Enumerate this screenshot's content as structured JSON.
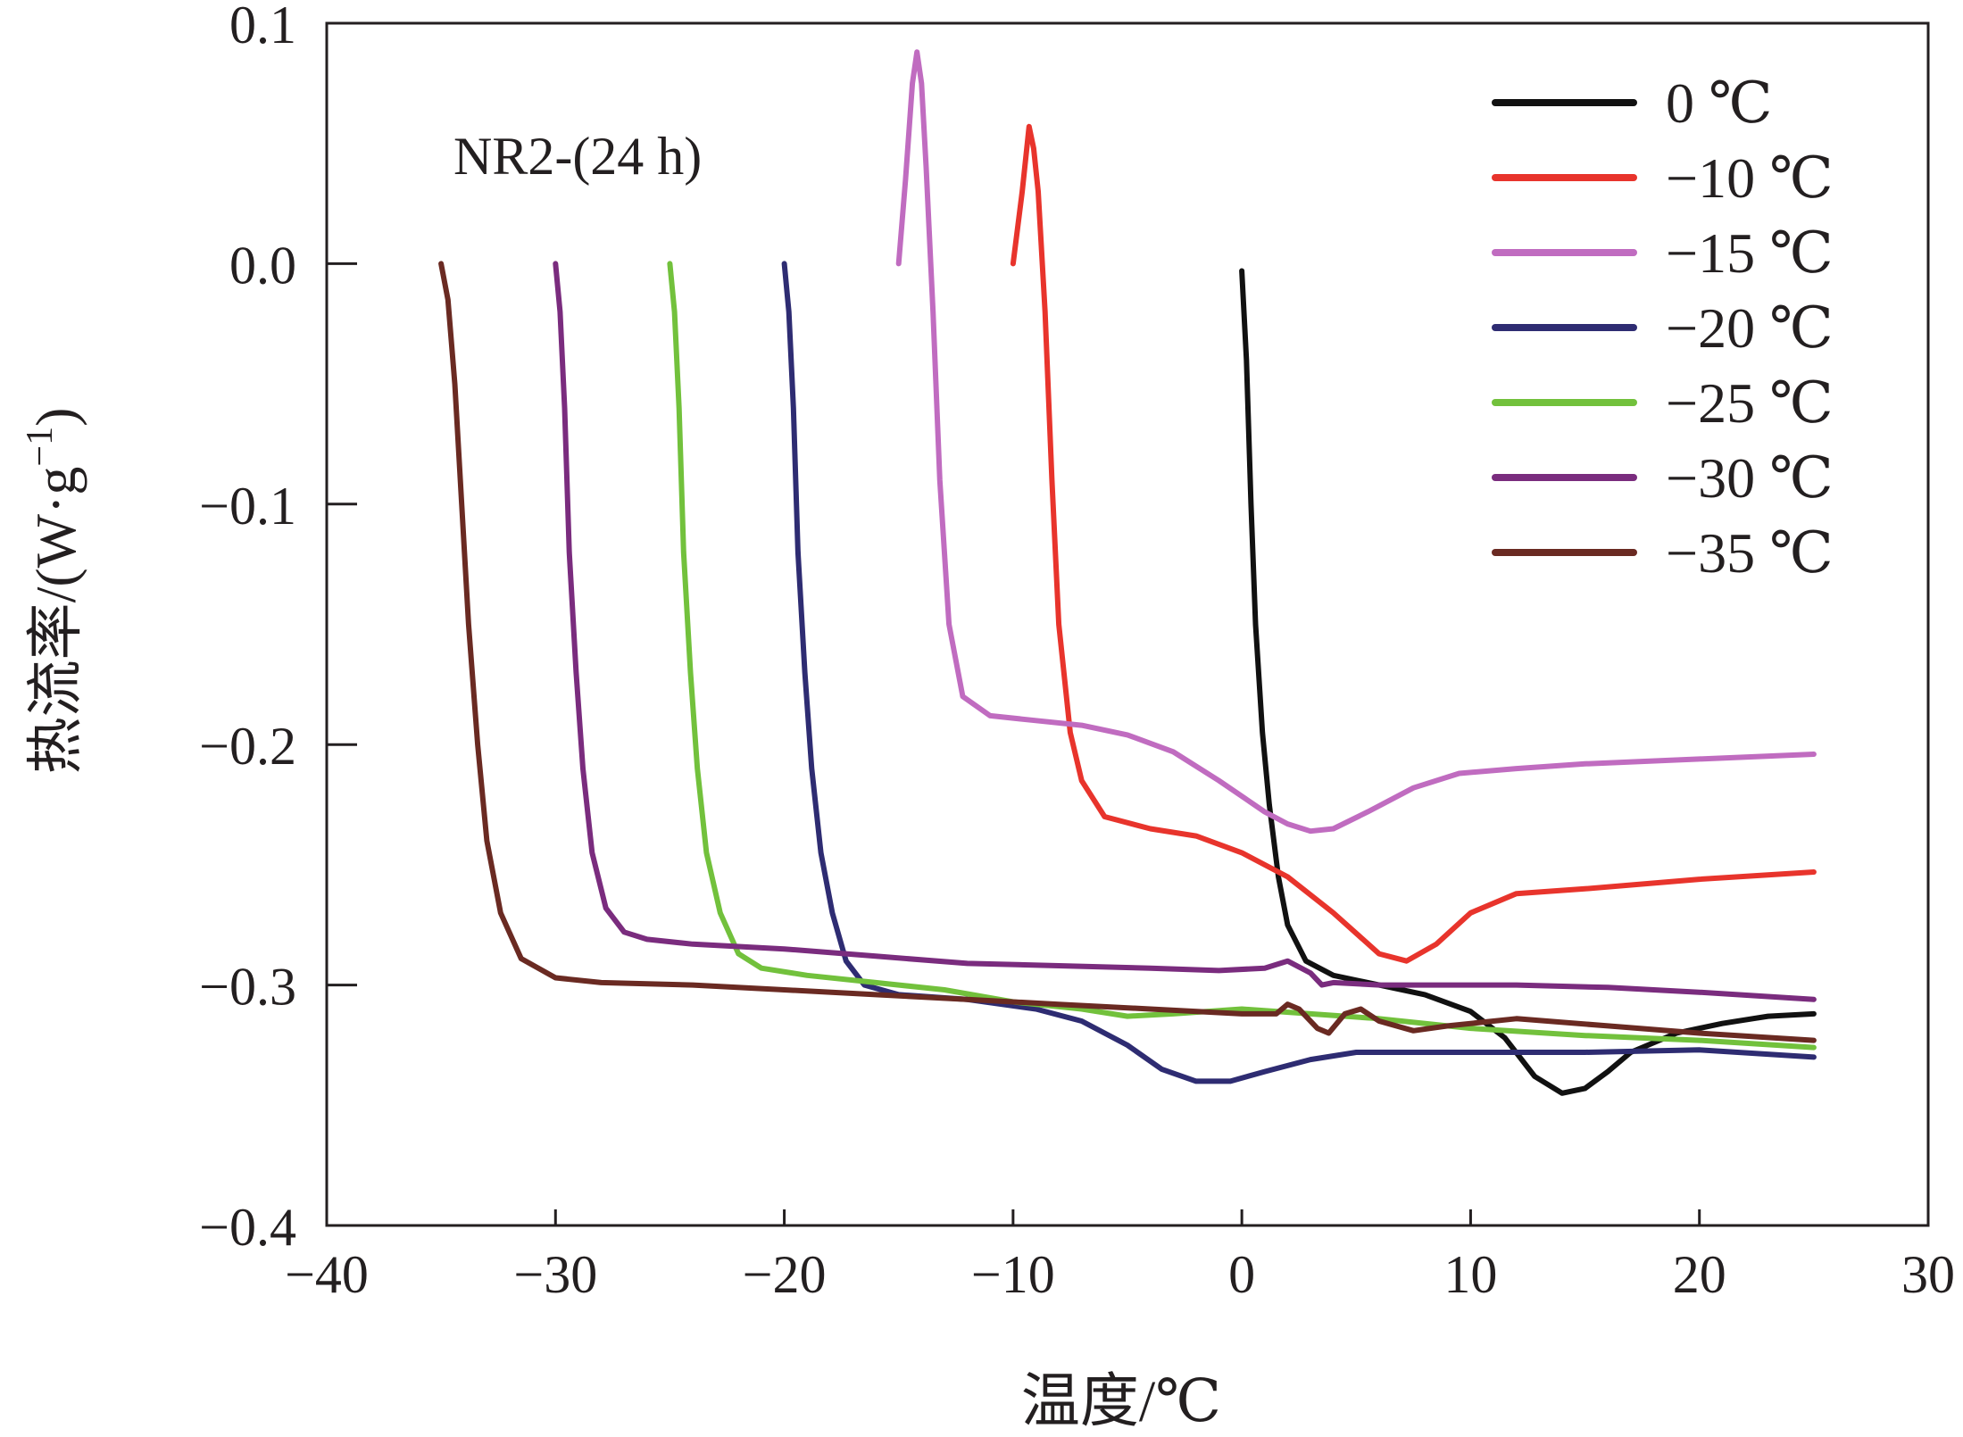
{
  "chart_data": {
    "type": "line",
    "title": "",
    "annotation": "NR2-(24 h)",
    "xlabel": "温度/℃",
    "ylabel": "热流率/(W·g",
    "ylabel_superscript": "−1",
    "ylabel_close": ")",
    "xlim": [
      -40,
      30
    ],
    "ylim": [
      -0.4,
      0.1
    ],
    "xticks": [
      -40,
      -30,
      -20,
      -10,
      0,
      10,
      20,
      30
    ],
    "yticks": [
      -0.4,
      -0.3,
      -0.2,
      -0.1,
      0.0,
      0.1
    ],
    "xtick_labels": [
      "−40",
      "−30",
      "−20",
      "−10",
      "0",
      "10",
      "20",
      "30"
    ],
    "ytick_labels": [
      "−0.4",
      "−0.3",
      "−0.2",
      "−0.1",
      "0.0",
      "0.1"
    ],
    "legend_position": "top-right",
    "grid": false,
    "series": [
      {
        "name": "0 ℃",
        "color": "#111111",
        "points": [
          [
            0.0,
            -0.003
          ],
          [
            0.2,
            -0.04
          ],
          [
            0.4,
            -0.1
          ],
          [
            0.6,
            -0.15
          ],
          [
            0.9,
            -0.195
          ],
          [
            1.2,
            -0.225
          ],
          [
            1.6,
            -0.255
          ],
          [
            2.0,
            -0.275
          ],
          [
            2.8,
            -0.29
          ],
          [
            4.0,
            -0.296
          ],
          [
            6.0,
            -0.3
          ],
          [
            8.0,
            -0.304
          ],
          [
            10.0,
            -0.311
          ],
          [
            11.5,
            -0.322
          ],
          [
            12.8,
            -0.338
          ],
          [
            14.0,
            -0.345
          ],
          [
            15.0,
            -0.343
          ],
          [
            16.0,
            -0.336
          ],
          [
            17.0,
            -0.328
          ],
          [
            19.0,
            -0.32
          ],
          [
            21.0,
            -0.316
          ],
          [
            23.0,
            -0.313
          ],
          [
            25.0,
            -0.312
          ]
        ]
      },
      {
        "name": "−10 ℃",
        "color": "#e8342c",
        "points": [
          [
            -10.0,
            0.0
          ],
          [
            -9.6,
            0.03
          ],
          [
            -9.3,
            0.057
          ],
          [
            -9.1,
            0.048
          ],
          [
            -8.9,
            0.03
          ],
          [
            -8.6,
            -0.02
          ],
          [
            -8.3,
            -0.09
          ],
          [
            -8.0,
            -0.15
          ],
          [
            -7.5,
            -0.195
          ],
          [
            -7.0,
            -0.215
          ],
          [
            -6.0,
            -0.23
          ],
          [
            -4.0,
            -0.235
          ],
          [
            -2.0,
            -0.238
          ],
          [
            0.0,
            -0.245
          ],
          [
            2.0,
            -0.255
          ],
          [
            4.0,
            -0.27
          ],
          [
            6.0,
            -0.287
          ],
          [
            7.2,
            -0.29
          ],
          [
            8.5,
            -0.283
          ],
          [
            10.0,
            -0.27
          ],
          [
            12.0,
            -0.262
          ],
          [
            15.0,
            -0.26
          ],
          [
            20.0,
            -0.256
          ],
          [
            25.0,
            -0.253
          ]
        ]
      },
      {
        "name": "−15 ℃",
        "color": "#c06cc0",
        "points": [
          [
            -15.0,
            0.0
          ],
          [
            -14.7,
            0.035
          ],
          [
            -14.4,
            0.075
          ],
          [
            -14.2,
            0.088
          ],
          [
            -14.0,
            0.075
          ],
          [
            -13.8,
            0.04
          ],
          [
            -13.5,
            -0.02
          ],
          [
            -13.2,
            -0.09
          ],
          [
            -12.8,
            -0.15
          ],
          [
            -12.2,
            -0.18
          ],
          [
            -11.0,
            -0.188
          ],
          [
            -9.0,
            -0.19
          ],
          [
            -7.0,
            -0.192
          ],
          [
            -5.0,
            -0.196
          ],
          [
            -3.0,
            -0.203
          ],
          [
            -1.0,
            -0.215
          ],
          [
            1.0,
            -0.228
          ],
          [
            2.0,
            -0.233
          ],
          [
            3.0,
            -0.236
          ],
          [
            4.0,
            -0.235
          ],
          [
            5.5,
            -0.228
          ],
          [
            7.5,
            -0.218
          ],
          [
            9.5,
            -0.212
          ],
          [
            12.0,
            -0.21
          ],
          [
            15.0,
            -0.208
          ],
          [
            20.0,
            -0.206
          ],
          [
            25.0,
            -0.204
          ]
        ]
      },
      {
        "name": "−20 ℃",
        "color": "#2e2c72",
        "points": [
          [
            -20.0,
            0.0
          ],
          [
            -19.8,
            -0.02
          ],
          [
            -19.6,
            -0.06
          ],
          [
            -19.4,
            -0.12
          ],
          [
            -19.1,
            -0.17
          ],
          [
            -18.8,
            -0.21
          ],
          [
            -18.4,
            -0.245
          ],
          [
            -17.9,
            -0.27
          ],
          [
            -17.3,
            -0.29
          ],
          [
            -16.5,
            -0.3
          ],
          [
            -15.0,
            -0.304
          ],
          [
            -12.0,
            -0.306
          ],
          [
            -9.0,
            -0.31
          ],
          [
            -7.0,
            -0.315
          ],
          [
            -5.0,
            -0.325
          ],
          [
            -3.5,
            -0.335
          ],
          [
            -2.0,
            -0.34
          ],
          [
            -0.5,
            -0.34
          ],
          [
            1.0,
            -0.336
          ],
          [
            3.0,
            -0.331
          ],
          [
            5.0,
            -0.328
          ],
          [
            10.0,
            -0.328
          ],
          [
            15.0,
            -0.328
          ],
          [
            20.0,
            -0.327
          ],
          [
            25.0,
            -0.33
          ]
        ]
      },
      {
        "name": "−25 ℃",
        "color": "#72c13c",
        "points": [
          [
            -25.0,
            0.0
          ],
          [
            -24.8,
            -0.02
          ],
          [
            -24.6,
            -0.06
          ],
          [
            -24.4,
            -0.12
          ],
          [
            -24.1,
            -0.17
          ],
          [
            -23.8,
            -0.21
          ],
          [
            -23.4,
            -0.245
          ],
          [
            -22.8,
            -0.27
          ],
          [
            -22.0,
            -0.287
          ],
          [
            -21.0,
            -0.293
          ],
          [
            -19.0,
            -0.296
          ],
          [
            -16.0,
            -0.299
          ],
          [
            -13.0,
            -0.302
          ],
          [
            -10.0,
            -0.307
          ],
          [
            -7.0,
            -0.31
          ],
          [
            -5.0,
            -0.313
          ],
          [
            -3.0,
            -0.312
          ],
          [
            0.0,
            -0.31
          ],
          [
            3.0,
            -0.312
          ],
          [
            6.0,
            -0.314
          ],
          [
            10.0,
            -0.318
          ],
          [
            15.0,
            -0.321
          ],
          [
            20.0,
            -0.323
          ],
          [
            25.0,
            -0.326
          ]
        ]
      },
      {
        "name": "−30 ℃",
        "color": "#7a2c7e",
        "points": [
          [
            -30.0,
            0.0
          ],
          [
            -29.8,
            -0.02
          ],
          [
            -29.6,
            -0.06
          ],
          [
            -29.4,
            -0.12
          ],
          [
            -29.1,
            -0.17
          ],
          [
            -28.8,
            -0.21
          ],
          [
            -28.4,
            -0.245
          ],
          [
            -27.8,
            -0.268
          ],
          [
            -27.0,
            -0.278
          ],
          [
            -26.0,
            -0.281
          ],
          [
            -24.0,
            -0.283
          ],
          [
            -20.0,
            -0.285
          ],
          [
            -16.0,
            -0.288
          ],
          [
            -12.0,
            -0.291
          ],
          [
            -8.0,
            -0.292
          ],
          [
            -4.0,
            -0.293
          ],
          [
            -1.0,
            -0.294
          ],
          [
            1.0,
            -0.293
          ],
          [
            2.0,
            -0.29
          ],
          [
            3.0,
            -0.295
          ],
          [
            3.5,
            -0.3
          ],
          [
            4.0,
            -0.299
          ],
          [
            6.0,
            -0.3
          ],
          [
            9.0,
            -0.3
          ],
          [
            12.0,
            -0.3
          ],
          [
            16.0,
            -0.301
          ],
          [
            20.0,
            -0.303
          ],
          [
            25.0,
            -0.306
          ]
        ]
      },
      {
        "name": "−35 ℃",
        "color": "#6a2a22",
        "points": [
          [
            -35.0,
            0.0
          ],
          [
            -34.7,
            -0.015
          ],
          [
            -34.4,
            -0.05
          ],
          [
            -34.1,
            -0.1
          ],
          [
            -33.8,
            -0.15
          ],
          [
            -33.4,
            -0.2
          ],
          [
            -33.0,
            -0.24
          ],
          [
            -32.4,
            -0.27
          ],
          [
            -31.5,
            -0.289
          ],
          [
            -30.0,
            -0.297
          ],
          [
            -28.0,
            -0.299
          ],
          [
            -24.0,
            -0.3
          ],
          [
            -20.0,
            -0.302
          ],
          [
            -16.0,
            -0.304
          ],
          [
            -12.0,
            -0.306
          ],
          [
            -8.0,
            -0.308
          ],
          [
            -4.0,
            -0.31
          ],
          [
            0.0,
            -0.312
          ],
          [
            1.5,
            -0.312
          ],
          [
            2.0,
            -0.308
          ],
          [
            2.5,
            -0.31
          ],
          [
            3.3,
            -0.318
          ],
          [
            3.8,
            -0.32
          ],
          [
            4.5,
            -0.312
          ],
          [
            5.2,
            -0.31
          ],
          [
            6.0,
            -0.315
          ],
          [
            7.5,
            -0.319
          ],
          [
            9.0,
            -0.317
          ],
          [
            12.0,
            -0.314
          ],
          [
            16.0,
            -0.317
          ],
          [
            20.0,
            -0.32
          ],
          [
            25.0,
            -0.323
          ]
        ]
      }
    ]
  }
}
